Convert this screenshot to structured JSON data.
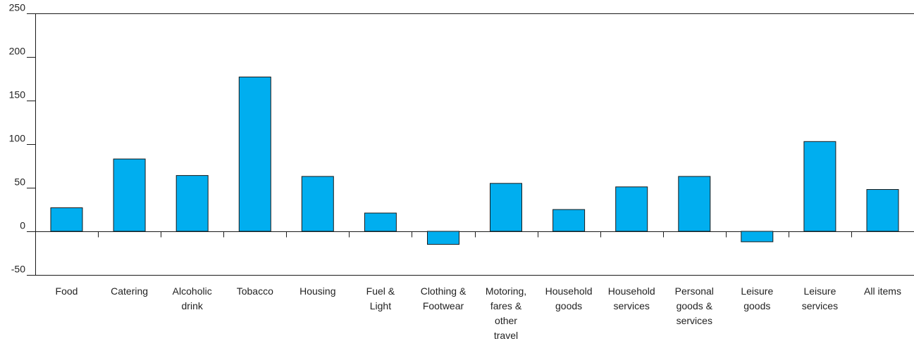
{
  "chart_data": {
    "type": "bar",
    "title": "",
    "xlabel": "",
    "ylabel": "",
    "ylim": [
      -50,
      250
    ],
    "yticks": [
      250,
      200,
      150,
      100,
      50,
      0,
      -50
    ],
    "grid": false,
    "categories": [
      [
        "Food"
      ],
      [
        "Catering"
      ],
      [
        "Alcoholic",
        "drink"
      ],
      [
        "Tobacco"
      ],
      [
        "Housing"
      ],
      [
        "Fuel &",
        "Light"
      ],
      [
        "Clothing &",
        "Footwear"
      ],
      [
        "Motoring,",
        "fares &",
        "other",
        "travel"
      ],
      [
        "Household",
        "goods"
      ],
      [
        "Household",
        "services"
      ],
      [
        "Personal",
        "goods &",
        "services"
      ],
      [
        "Leisure",
        "goods"
      ],
      [
        "Leisure",
        "services"
      ],
      [
        "All items"
      ]
    ],
    "values": [
      27,
      83,
      64,
      177,
      63,
      21,
      -15,
      55,
      25,
      51,
      63,
      -12,
      103,
      48
    ],
    "bar_color": "#00AEEF",
    "bar_stroke": "#1a1a1a"
  }
}
